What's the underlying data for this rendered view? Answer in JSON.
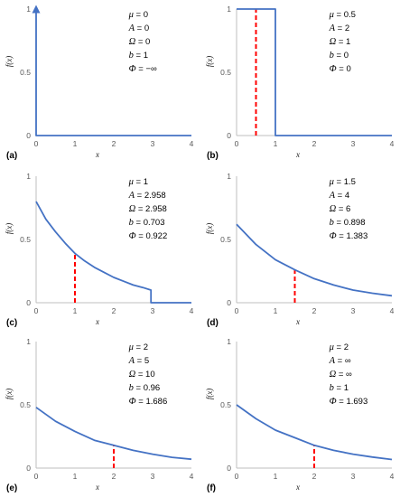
{
  "chart_data": [
    {
      "type": "line",
      "panel_label": "(a)",
      "xlabel": "x",
      "ylabel": "f(x)",
      "xlim": [
        0,
        4
      ],
      "ylim": [
        0,
        1
      ],
      "xticks": [
        "0",
        "1",
        "2",
        "3",
        "4"
      ],
      "yticks": [
        "0",
        "0.5",
        "1"
      ],
      "series": [
        {
          "x": [
            0,
            0,
            4
          ],
          "y": [
            1,
            0,
            0
          ],
          "style": "line",
          "arrow_at_first": true
        }
      ],
      "annotations": [
        {
          "sym": "μ",
          "val": " = 0"
        },
        {
          "sym": "A",
          "val": " = 0"
        },
        {
          "sym": "Ω",
          "val": " = 0"
        },
        {
          "sym": "b",
          "val": " = 1"
        },
        {
          "sym": "Φ",
          "val": " = −∞"
        }
      ]
    },
    {
      "type": "line",
      "panel_label": "(b)",
      "xlabel": "x",
      "ylabel": "f(x)",
      "xlim": [
        0,
        4
      ],
      "ylim": [
        0,
        1
      ],
      "xticks": [
        "0",
        "1",
        "2",
        "3",
        "4"
      ],
      "yticks": [
        "0",
        "0.5",
        "1"
      ],
      "series": [
        {
          "x": [
            0,
            1,
            1,
            4
          ],
          "y": [
            1,
            1,
            0,
            0
          ],
          "style": "line"
        }
      ],
      "mean_line": {
        "x": 0.5,
        "y": 1
      },
      "annotations": [
        {
          "sym": "μ",
          "val": " = 0.5"
        },
        {
          "sym": "A",
          "val": " = 2"
        },
        {
          "sym": "Ω",
          "val": " = 1"
        },
        {
          "sym": "b",
          "val": " = 0"
        },
        {
          "sym": "Φ",
          "val": " = 0"
        }
      ]
    },
    {
      "type": "line",
      "panel_label": "(c)",
      "xlabel": "x",
      "ylabel": "f(x)",
      "xlim": [
        0,
        4
      ],
      "ylim": [
        0,
        1
      ],
      "xticks": [
        "0",
        "1",
        "2",
        "3",
        "4"
      ],
      "yticks": [
        "0",
        "0.5",
        "1"
      ],
      "series": [
        {
          "x": [
            0,
            0.25,
            0.5,
            0.75,
            1,
            1.25,
            1.5,
            1.75,
            2,
            2.25,
            2.5,
            2.75,
            2.958,
            2.958,
            4
          ],
          "y": [
            0.8,
            0.66,
            0.56,
            0.47,
            0.39,
            0.33,
            0.28,
            0.24,
            0.2,
            0.17,
            0.14,
            0.12,
            0.1,
            0,
            0
          ],
          "style": "line"
        }
      ],
      "mean_line": {
        "x": 1,
        "y": 0.39
      },
      "annotations": [
        {
          "sym": "μ",
          "val": " = 1"
        },
        {
          "sym": "A",
          "val": " = 2.958"
        },
        {
          "sym": "Ω",
          "val": " = 2.958"
        },
        {
          "sym": "b",
          "val": " = 0.703"
        },
        {
          "sym": "Φ",
          "val": " = 0.922"
        }
      ]
    },
    {
      "type": "line",
      "panel_label": "(d)",
      "xlabel": "x",
      "ylabel": "f(x)",
      "xlim": [
        0,
        4
      ],
      "ylim": [
        0,
        1
      ],
      "xticks": [
        "0",
        "1",
        "2",
        "3",
        "4"
      ],
      "yticks": [
        "0",
        "0.5",
        "1"
      ],
      "series": [
        {
          "x": [
            0,
            0.5,
            1,
            1.5,
            2,
            2.5,
            3,
            3.5,
            4
          ],
          "y": [
            0.62,
            0.46,
            0.34,
            0.26,
            0.19,
            0.14,
            0.1,
            0.075,
            0.055
          ],
          "style": "line"
        }
      ],
      "mean_line": {
        "x": 1.5,
        "y": 0.26
      },
      "annotations": [
        {
          "sym": "μ",
          "val": " = 1.5"
        },
        {
          "sym": "A",
          "val": " = 4"
        },
        {
          "sym": "Ω",
          "val": " = 6"
        },
        {
          "sym": "b",
          "val": " = 0.898"
        },
        {
          "sym": "Φ",
          "val": " = 1.383"
        }
      ]
    },
    {
      "type": "line",
      "panel_label": "(e)",
      "xlabel": "x",
      "ylabel": "f(x)",
      "xlim": [
        0,
        4
      ],
      "ylim": [
        0,
        1
      ],
      "xticks": [
        "0",
        "1",
        "2",
        "3",
        "4"
      ],
      "yticks": [
        "0",
        "0.5",
        "1"
      ],
      "series": [
        {
          "x": [
            0,
            0.5,
            1,
            1.5,
            2,
            2.5,
            3,
            3.5,
            4
          ],
          "y": [
            0.48,
            0.37,
            0.29,
            0.22,
            0.18,
            0.14,
            0.11,
            0.085,
            0.07
          ],
          "style": "line"
        }
      ],
      "mean_line": {
        "x": 2,
        "y": 0.18
      },
      "annotations": [
        {
          "sym": "μ",
          "val": " = 2"
        },
        {
          "sym": "A",
          "val": " = 5"
        },
        {
          "sym": "Ω",
          "val": " = 10"
        },
        {
          "sym": "b",
          "val": " = 0.96"
        },
        {
          "sym": "Φ",
          "val": " = 1.686"
        }
      ]
    },
    {
      "type": "line",
      "panel_label": "(f)",
      "xlabel": "x",
      "ylabel": "f(x)",
      "xlim": [
        0,
        4
      ],
      "ylim": [
        0,
        1
      ],
      "xticks": [
        "0",
        "1",
        "2",
        "3",
        "4"
      ],
      "yticks": [
        "0",
        "0.5",
        "1"
      ],
      "series": [
        {
          "x": [
            0,
            0.5,
            1,
            1.5,
            2,
            2.5,
            3,
            3.5,
            4
          ],
          "y": [
            0.5,
            0.39,
            0.3,
            0.24,
            0.18,
            0.14,
            0.11,
            0.087,
            0.068
          ],
          "style": "line"
        }
      ],
      "mean_line": {
        "x": 2,
        "y": 0.18
      },
      "annotations": [
        {
          "sym": "μ",
          "val": " = 2"
        },
        {
          "sym": "A",
          "val": " = ∞"
        },
        {
          "sym": "Ω",
          "val": " = ∞"
        },
        {
          "sym": "b",
          "val": " = 1"
        },
        {
          "sym": "Φ",
          "val": " = 1.693"
        }
      ]
    }
  ],
  "colors": {
    "curve": "#4472c4",
    "mean_line": "#ff0000",
    "axis": "#bfbfbf"
  }
}
